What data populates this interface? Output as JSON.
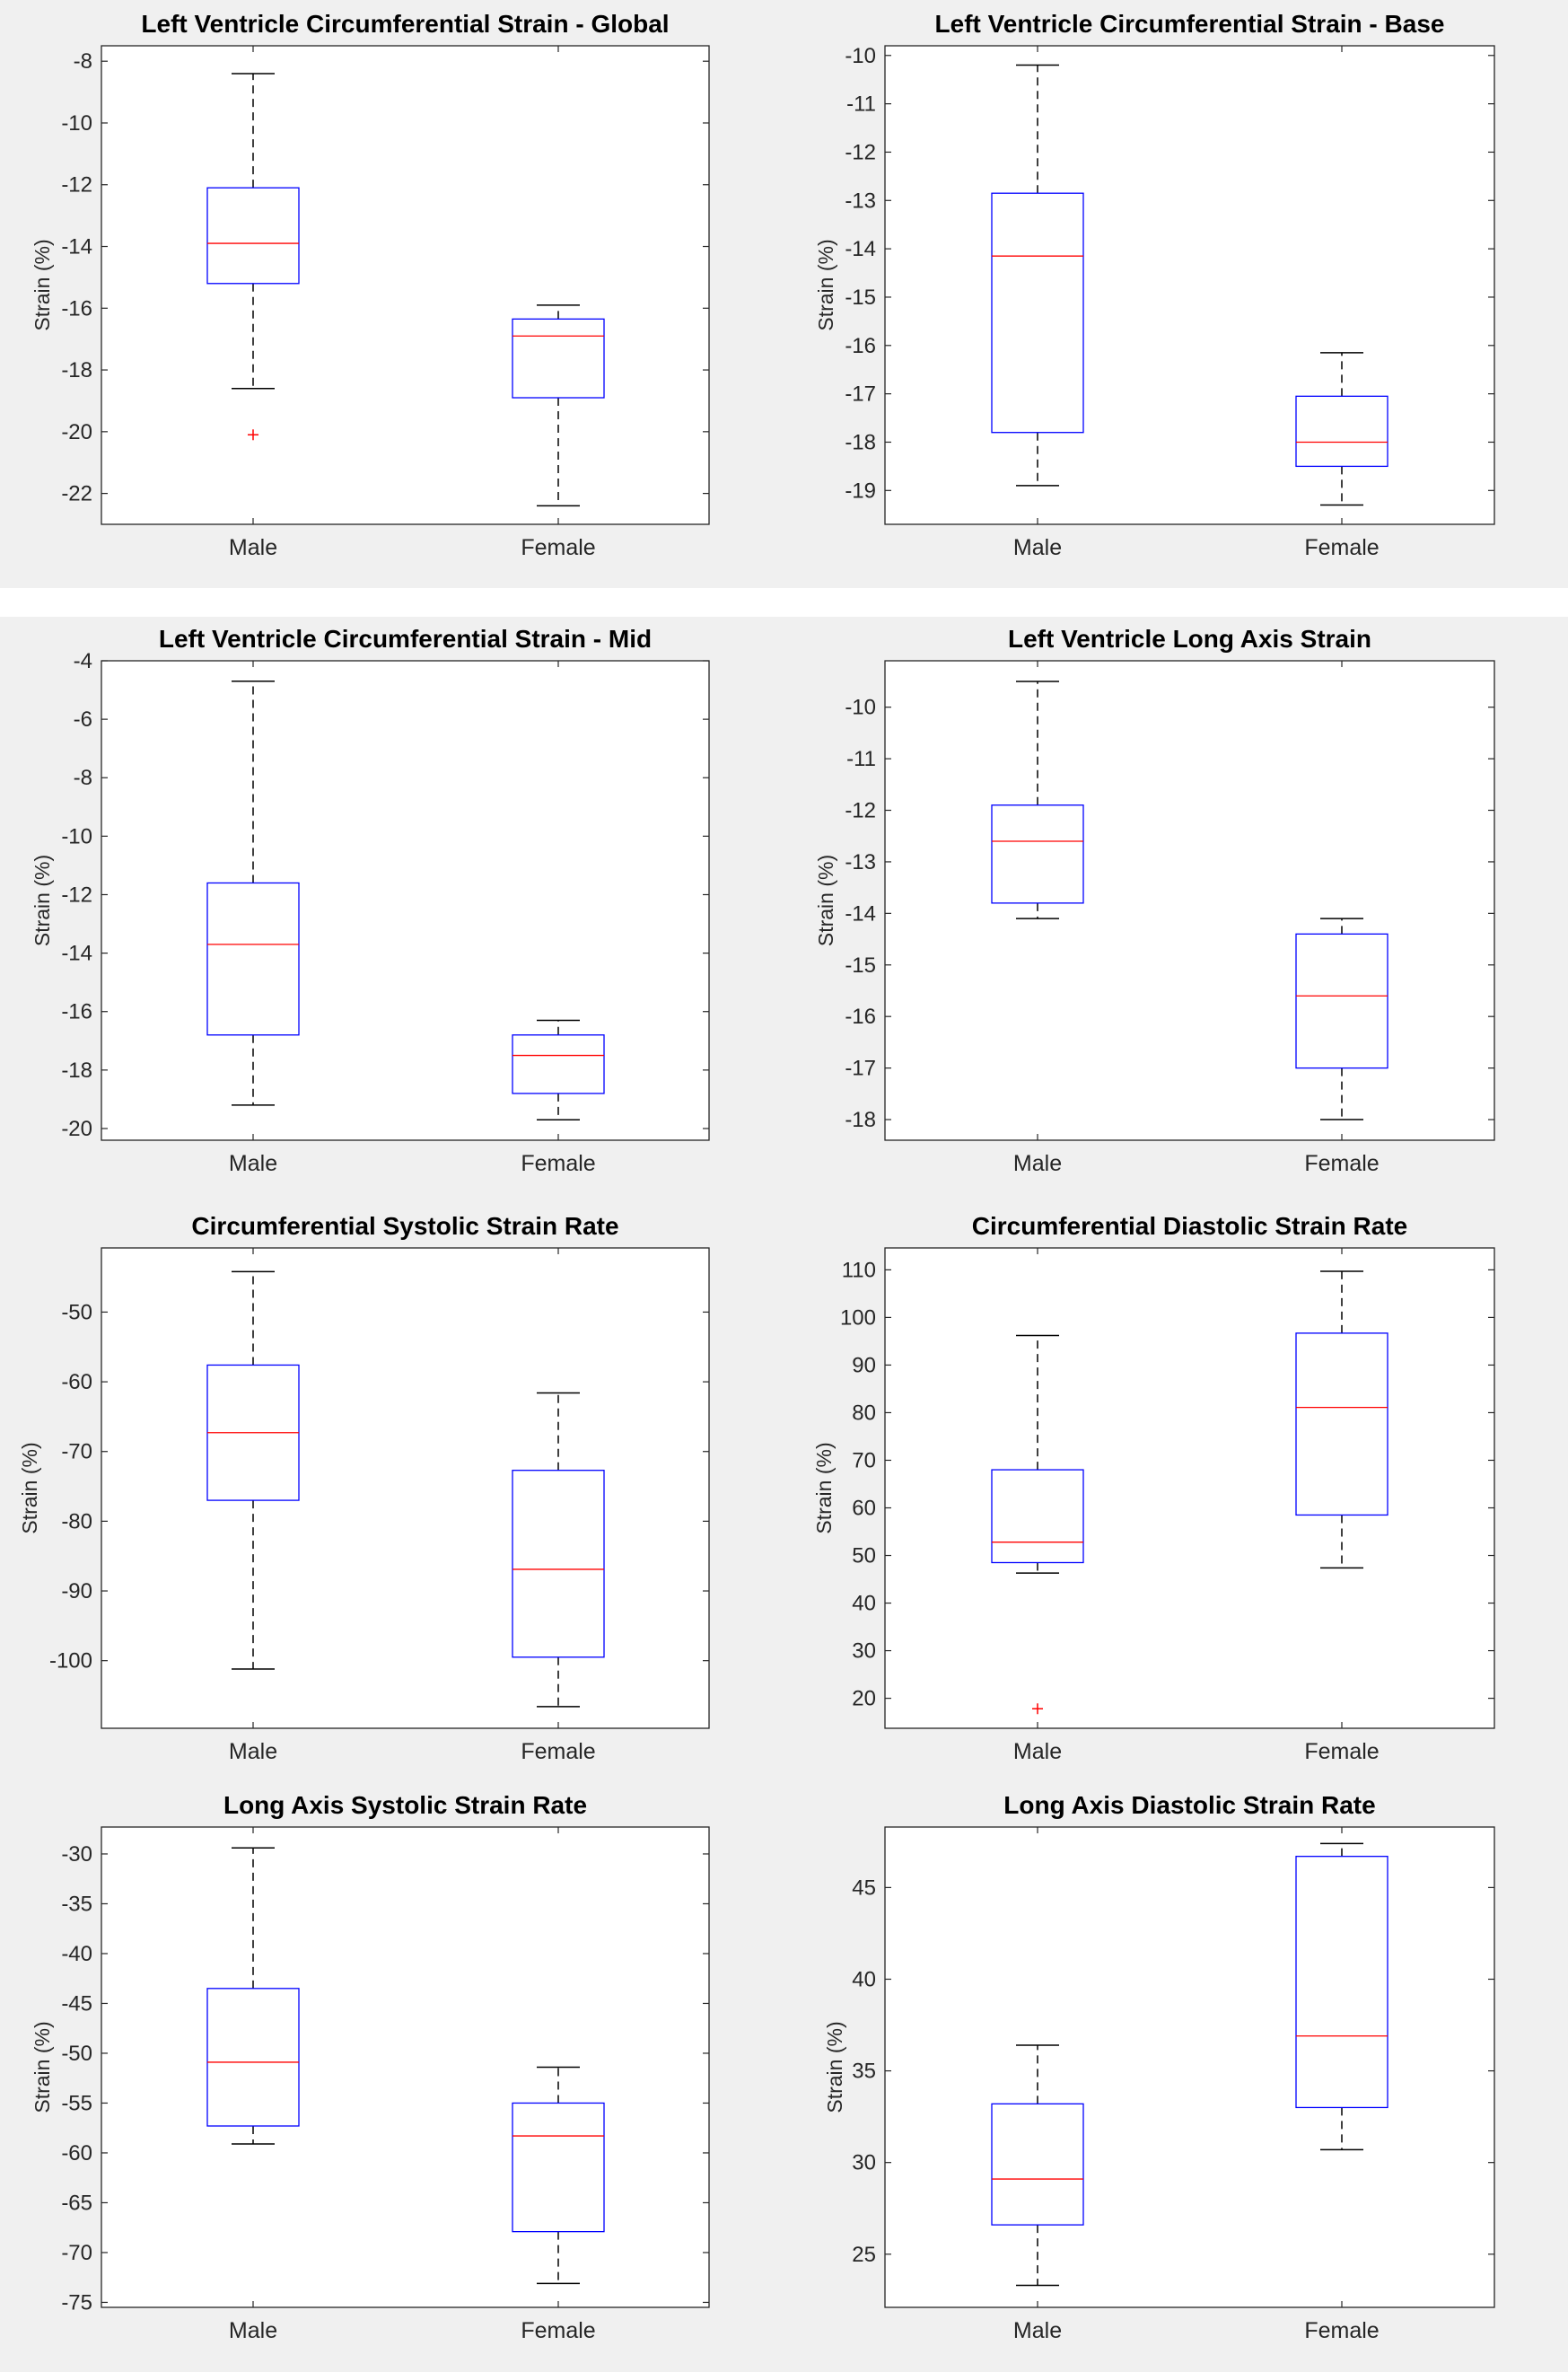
{
  "colors": {
    "box": "#0000ff",
    "median": "#ff0000",
    "whisker": "#000000",
    "outlier": "#ff0000",
    "band": "#f0f0f0"
  },
  "chart_data": [
    {
      "type": "box",
      "title": "Left Ventricle Circumferential Strain - Global",
      "ylabel": "Strain (%)",
      "ylim": [
        -23,
        -7.5
      ],
      "yticks": [
        -8,
        -10,
        -12,
        -14,
        -16,
        -18,
        -20,
        -22
      ],
      "categories": [
        "Male",
        "Female"
      ],
      "boxes": [
        {
          "whisker_low": -18.6,
          "q1": -15.2,
          "median": -13.9,
          "q3": -12.1,
          "whisker_high": -8.4,
          "outliers": [
            -20.1
          ]
        },
        {
          "whisker_low": -22.4,
          "q1": -18.9,
          "median": -16.9,
          "q3": -16.35,
          "whisker_high": -15.9,
          "outliers": []
        }
      ]
    },
    {
      "type": "box",
      "title": "Left Ventricle Circumferential Strain - Base",
      "ylabel": "Strain (%)",
      "ylim": [
        -19.7,
        -9.8
      ],
      "yticks": [
        -10,
        -11,
        -12,
        -13,
        -14,
        -15,
        -16,
        -17,
        -18,
        -19
      ],
      "categories": [
        "Male",
        "Female"
      ],
      "boxes": [
        {
          "whisker_low": -18.9,
          "q1": -17.8,
          "median": -14.15,
          "q3": -12.85,
          "whisker_high": -10.2,
          "outliers": []
        },
        {
          "whisker_low": -19.3,
          "q1": -18.5,
          "median": -18.0,
          "q3": -17.05,
          "whisker_high": -16.15,
          "outliers": []
        }
      ]
    },
    {
      "type": "box",
      "title": "Left Ventricle Circumferential Strain - Mid",
      "ylabel": "Strain (%)",
      "ylim": [
        -20.4,
        -4
      ],
      "yticks": [
        -4,
        -6,
        -8,
        -10,
        -12,
        -14,
        -16,
        -18,
        -20
      ],
      "categories": [
        "Male",
        "Female"
      ],
      "boxes": [
        {
          "whisker_low": -19.2,
          "q1": -16.8,
          "median": -13.7,
          "q3": -11.6,
          "whisker_high": -4.7,
          "outliers": []
        },
        {
          "whisker_low": -19.7,
          "q1": -18.8,
          "median": -17.5,
          "q3": -16.8,
          "whisker_high": -16.3,
          "outliers": []
        }
      ]
    },
    {
      "type": "box",
      "title": "Left Ventricle Long Axis Strain",
      "ylabel": "Strain (%)",
      "ylim": [
        -18.4,
        -9.1
      ],
      "yticks": [
        -10,
        -11,
        -12,
        -13,
        -14,
        -15,
        -16,
        -17,
        -18
      ],
      "categories": [
        "Male",
        "Female"
      ],
      "boxes": [
        {
          "whisker_low": -14.1,
          "q1": -13.8,
          "median": -12.6,
          "q3": -11.9,
          "whisker_high": -9.5,
          "outliers": []
        },
        {
          "whisker_low": -18.0,
          "q1": -17.0,
          "median": -15.6,
          "q3": -14.4,
          "whisker_high": -14.1,
          "outliers": []
        }
      ]
    },
    {
      "type": "box",
      "title": "Circumferential Systolic Strain Rate",
      "ylabel": "Strain (%)",
      "ylim": [
        -109.7,
        -40.8
      ],
      "yticks": [
        -50,
        -60,
        -70,
        -80,
        -90,
        -100
      ],
      "categories": [
        "Male",
        "Female"
      ],
      "boxes": [
        {
          "whisker_low": -101.2,
          "q1": -77.0,
          "median": -67.3,
          "q3": -57.6,
          "whisker_high": -44.2,
          "outliers": []
        },
        {
          "whisker_low": -106.6,
          "q1": -99.5,
          "median": -86.9,
          "q3": -72.7,
          "whisker_high": -61.6,
          "outliers": []
        }
      ]
    },
    {
      "type": "box",
      "title": "Circumferential Diastolic Strain Rate",
      "ylabel": "Strain (%)",
      "ylim": [
        13.7,
        114.6
      ],
      "yticks": [
        110,
        100,
        90,
        80,
        70,
        60,
        50,
        40,
        30,
        20
      ],
      "categories": [
        "Male",
        "Female"
      ],
      "boxes": [
        {
          "whisker_low": 46.3,
          "q1": 48.5,
          "median": 52.8,
          "q3": 68.0,
          "whisker_high": 96.2,
          "outliers": [
            17.8
          ]
        },
        {
          "whisker_low": 47.4,
          "q1": 58.5,
          "median": 81.1,
          "q3": 96.7,
          "whisker_high": 109.7,
          "outliers": []
        }
      ]
    },
    {
      "type": "box",
      "title": "Long Axis Systolic Strain Rate",
      "ylabel": "Strain (%)",
      "ylim": [
        -75.5,
        -27.3
      ],
      "yticks": [
        -30,
        -35,
        -40,
        -45,
        -50,
        -55,
        -60,
        -65,
        -70,
        -75
      ],
      "categories": [
        "Male",
        "Female"
      ],
      "boxes": [
        {
          "whisker_low": -59.1,
          "q1": -57.3,
          "median": -50.9,
          "q3": -43.5,
          "whisker_high": -29.4,
          "outliers": []
        },
        {
          "whisker_low": -73.1,
          "q1": -67.9,
          "median": -58.3,
          "q3": -55.0,
          "whisker_high": -51.4,
          "outliers": []
        }
      ]
    },
    {
      "type": "box",
      "title": "Long Axis Diastolic Strain Rate",
      "ylabel": "Strain (%)",
      "ylim": [
        22.1,
        48.3
      ],
      "yticks": [
        45,
        40,
        35,
        30,
        25
      ],
      "categories": [
        "Male",
        "Female"
      ],
      "boxes": [
        {
          "whisker_low": 23.3,
          "q1": 26.6,
          "median": 29.1,
          "q3": 33.2,
          "whisker_high": 36.4,
          "outliers": []
        },
        {
          "whisker_low": 30.7,
          "q1": 33.0,
          "median": 36.9,
          "q3": 46.7,
          "whisker_high": 47.4,
          "outliers": []
        }
      ]
    }
  ]
}
